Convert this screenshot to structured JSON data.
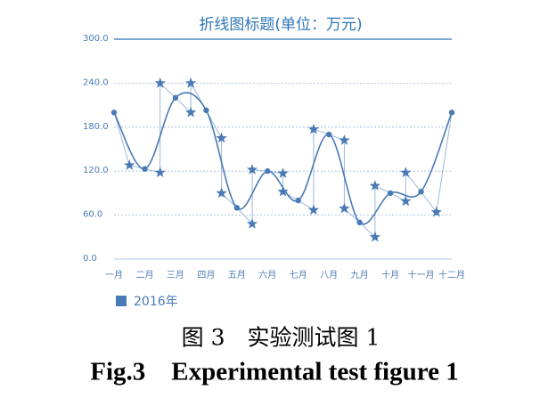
{
  "chart_data": {
    "type": "line",
    "title": "折线图标题(单位：万元)",
    "categories": [
      "一月",
      "二月",
      "三月",
      "四月",
      "五月",
      "六月",
      "七月",
      "八月",
      "九月",
      "十月",
      "十一月",
      "十二月"
    ],
    "series": [
      {
        "name": "2016年",
        "color": "#4a7ab5",
        "values": [
          200,
          123,
          220,
          203,
          70,
          120,
          80,
          170,
          50,
          90,
          92,
          200
        ]
      }
    ],
    "markers": {
      "x": [
        0.5,
        1.5,
        2.5,
        3.5,
        4.5,
        5.5,
        6.5,
        7.5,
        8.5,
        9.5,
        10.5
      ],
      "high": [
        128,
        240,
        240,
        165,
        122,
        117,
        177,
        162,
        100,
        118,
        64
      ],
      "low": [
        null,
        118,
        200,
        90,
        48,
        92,
        67,
        69,
        30,
        79,
        null
      ]
    },
    "ylim": [
      0,
      300
    ],
    "yticks": [
      {
        "value": 0,
        "label": "0.0"
      },
      {
        "value": 60,
        "label": "60.0"
      },
      {
        "value": 120,
        "label": "120.0"
      },
      {
        "value": 180,
        "label": "180.0"
      },
      {
        "value": 240,
        "label": "240.0"
      },
      {
        "value": 300,
        "label": "300.0"
      }
    ],
    "grid": true,
    "legend": "bottom-left"
  },
  "caption": {
    "cn": "图 3　实验测试图 1",
    "en": "Fig.3　Experimental test figure 1"
  }
}
